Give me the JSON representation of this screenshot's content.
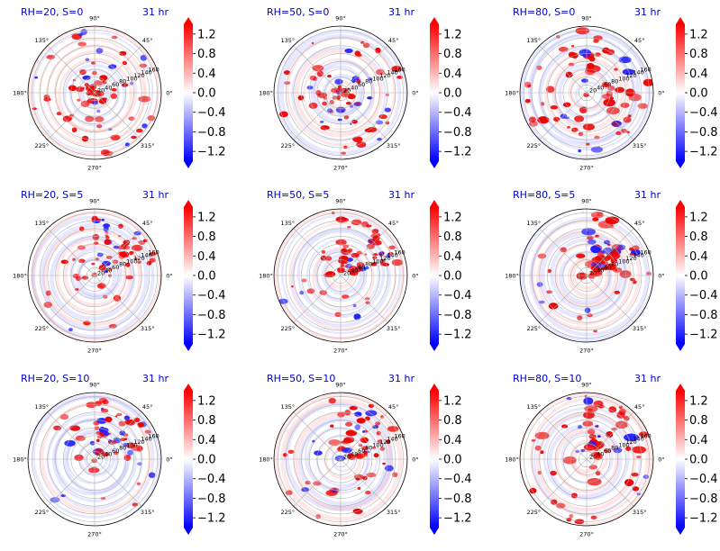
{
  "figure": {
    "colormap": "bwr",
    "colors": {
      "negative": "#0000ff",
      "zero": "#ffffff",
      "positive": "#ff0000",
      "title": "#0000cc"
    },
    "colorbar_ticks": [
      "1.2",
      "0.8",
      "0.4",
      "0.0",
      "−0.4",
      "−0.8",
      "−1.2"
    ],
    "colorbar_range": [
      -1.4,
      1.4
    ],
    "angle_labels": [
      "0°",
      "45°",
      "90°",
      "135°",
      "180°",
      "225°",
      "270°",
      "315°"
    ],
    "radial_labels": [
      "20",
      "40",
      "60",
      "80",
      "100",
      "120",
      "140",
      "160"
    ]
  },
  "chart_data": [
    {
      "type": "heatmap",
      "title": "RH=20, S=0",
      "time": "31 hr",
      "grid": true,
      "rlim": [
        0,
        170
      ]
    },
    {
      "type": "heatmap",
      "title": "RH=50, S=0",
      "time": "31 hr",
      "grid": true,
      "rlim": [
        0,
        170
      ]
    },
    {
      "type": "heatmap",
      "title": "RH=80, S=0",
      "time": "31 hr",
      "grid": true,
      "rlim": [
        0,
        170
      ]
    },
    {
      "type": "heatmap",
      "title": "RH=20, S=5",
      "time": "31 hr",
      "grid": true,
      "rlim": [
        0,
        170
      ]
    },
    {
      "type": "heatmap",
      "title": "RH=50, S=5",
      "time": "31 hr",
      "grid": true,
      "rlim": [
        0,
        170
      ]
    },
    {
      "type": "heatmap",
      "title": "RH=80, S=5",
      "time": "31 hr",
      "grid": true,
      "rlim": [
        0,
        170
      ]
    },
    {
      "type": "heatmap",
      "title": "RH=20, S=10",
      "time": "31 hr",
      "grid": true,
      "rlim": [
        0,
        170
      ]
    },
    {
      "type": "heatmap",
      "title": "RH=50, S=10",
      "time": "31 hr",
      "grid": true,
      "rlim": [
        0,
        170
      ]
    },
    {
      "type": "heatmap",
      "title": "RH=80, S=10",
      "time": "31 hr",
      "grid": true,
      "rlim": [
        0,
        170
      ]
    }
  ]
}
